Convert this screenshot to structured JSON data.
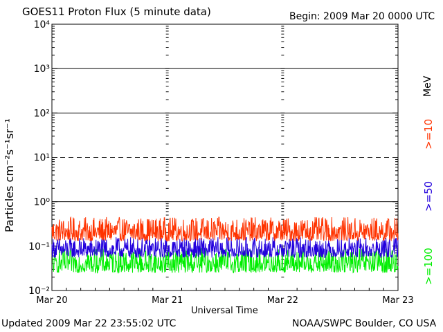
{
  "header": {
    "title": "GOES11 Proton Flux (5 minute data)",
    "begin": "Begin:  2009 Mar 20 0000 UTC"
  },
  "footer": {
    "updated": "Updated 2009 Mar 22 23:55:02 UTC",
    "source": "NOAA/SWPC Boulder, CO USA"
  },
  "legend": {
    "unit": "MeV",
    "items": [
      {
        "label": ">=10",
        "color": "#ff3300"
      },
      {
        "label": ">=50",
        "color": "#2200dd"
      },
      {
        "label": ">=100",
        "color": "#00ee00"
      }
    ]
  },
  "chart_data": {
    "type": "line",
    "title": "GOES11 Proton Flux (5 minute data)",
    "xlabel": "Universal Time",
    "ylabel": "Particles cm⁻²s⁻¹sr⁻¹",
    "yscale": "log",
    "ylim": [
      0.01,
      10000
    ],
    "y_ticks": [
      "10⁻²",
      "10⁻¹",
      "10⁰",
      "10¹",
      "10²",
      "10³",
      "10⁴"
    ],
    "x_ticks": [
      "Mar 20",
      "Mar 21",
      "Mar 22",
      "Mar 23"
    ],
    "xlim": [
      "2009-03-20 00:00",
      "2009-03-23 00:00"
    ],
    "reference_lines": [
      {
        "y": 1,
        "style": "solid"
      },
      {
        "y": 10,
        "style": "dashed"
      },
      {
        "y": 100,
        "style": "solid"
      },
      {
        "y": 1000,
        "style": "solid"
      }
    ],
    "series": [
      {
        "name": ">=10",
        "color": "#ff3300",
        "typical_min": 0.13,
        "typical_max": 0.45
      },
      {
        "name": ">=50",
        "color": "#2200dd",
        "typical_min": 0.055,
        "typical_max": 0.16
      },
      {
        "name": ">=100",
        "color": "#00ee00",
        "typical_min": 0.025,
        "typical_max": 0.09
      }
    ]
  }
}
